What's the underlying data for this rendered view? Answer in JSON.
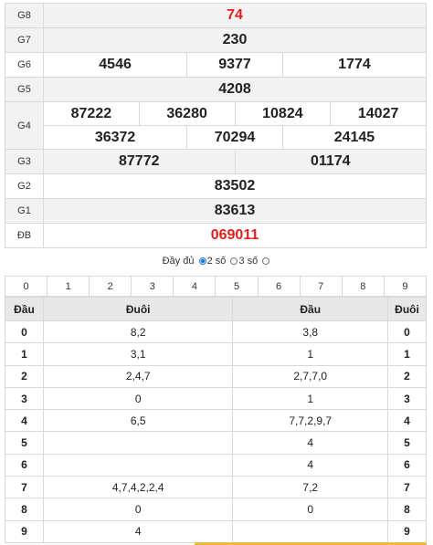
{
  "results": {
    "g8": {
      "label": "G8",
      "value": "74"
    },
    "g7": {
      "label": "G7",
      "value": "230"
    },
    "g6": {
      "label": "G6",
      "values": [
        "4546",
        "9377",
        "1774"
      ]
    },
    "g5": {
      "label": "G5",
      "value": "4208"
    },
    "g4": {
      "label": "G4",
      "row1": [
        "87222",
        "36280",
        "10824",
        "14027"
      ],
      "row2": [
        "36372",
        "70294",
        "24145"
      ]
    },
    "g3": {
      "label": "G3",
      "values": [
        "87772",
        "01174"
      ]
    },
    "g2": {
      "label": "G2",
      "value": "83502"
    },
    "g1": {
      "label": "G1",
      "value": "83613"
    },
    "db": {
      "label": "ĐB",
      "value": "069011"
    }
  },
  "filter": {
    "full": "Đầy đủ",
    "two": "2 số",
    "three": "3 số",
    "selected": "2 số"
  },
  "digits": [
    "0",
    "1",
    "2",
    "3",
    "4",
    "5",
    "6",
    "7",
    "8",
    "9"
  ],
  "head_tail": {
    "headers": [
      "Đầu",
      "Đuôi",
      "Đầu",
      "Đuôi"
    ],
    "rows": [
      {
        "head": "0",
        "tails": "8,2",
        "heads": "3,8",
        "tail": "0"
      },
      {
        "head": "1",
        "tails": "3,1",
        "heads": "1",
        "tail": "1"
      },
      {
        "head": "2",
        "tails": "2,4,7",
        "heads": "2,7,7,0",
        "tail": "2"
      },
      {
        "head": "3",
        "tails": "0",
        "heads": "1",
        "tail": "3"
      },
      {
        "head": "4",
        "tails": "6,5",
        "heads": "7,7,2,9,7",
        "tail": "4"
      },
      {
        "head": "5",
        "tails": "",
        "heads": "4",
        "tail": "5"
      },
      {
        "head": "6",
        "tails": "",
        "heads": "4",
        "tail": "6"
      },
      {
        "head": "7",
        "tails": "4,7,4,2,2,4",
        "heads": "7,2",
        "tail": "7"
      },
      {
        "head": "8",
        "tails": "0",
        "heads": "0",
        "tail": "8"
      },
      {
        "head": "9",
        "tails": "4",
        "heads": "",
        "tail": "9"
      }
    ]
  },
  "colors": {
    "special": "#e0211d",
    "shade": "#f2f2f2",
    "header": "#e8e8e8",
    "radio": "#1a73e8"
  }
}
